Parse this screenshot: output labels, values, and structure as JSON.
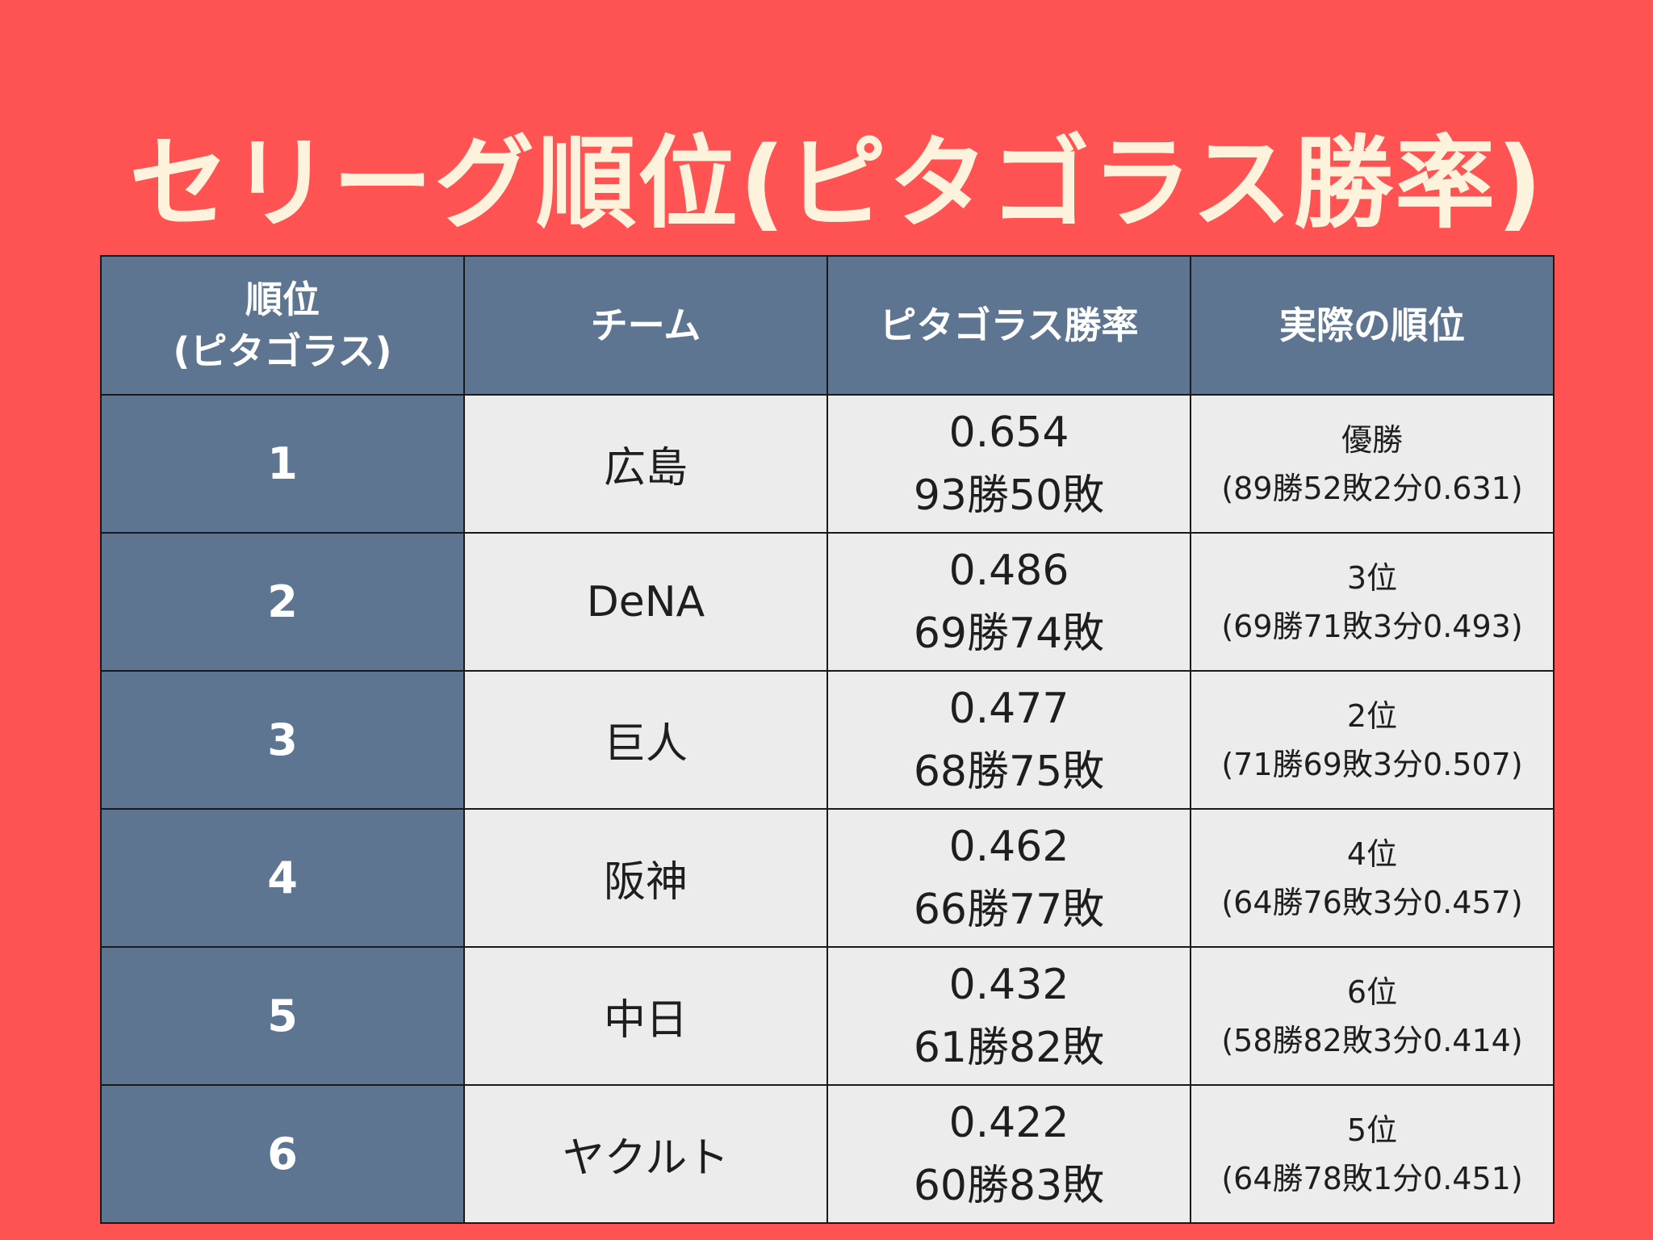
{
  "title": "セリーグ順位(ピタゴラス勝率)",
  "table": {
    "headers": {
      "rank_line1": "順位",
      "rank_line2": "(ピタゴラス)",
      "team": "チーム",
      "pythagorean": "ピタゴラス勝率",
      "actual": "実際の順位"
    },
    "rows": [
      {
        "rank": "1",
        "team": "広島",
        "pyth_rate": "0.654",
        "pyth_record": "93勝50敗",
        "actual_rank": "優勝",
        "actual_record": "(89勝52敗2分0.631)"
      },
      {
        "rank": "2",
        "team": "DeNA",
        "pyth_rate": "0.486",
        "pyth_record": "69勝74敗",
        "actual_rank": "3位",
        "actual_record": "(69勝71敗3分0.493)"
      },
      {
        "rank": "3",
        "team": "巨人",
        "pyth_rate": "0.477",
        "pyth_record": "68勝75敗",
        "actual_rank": "2位",
        "actual_record": "(71勝69敗3分0.507)"
      },
      {
        "rank": "4",
        "team": "阪神",
        "pyth_rate": "0.462",
        "pyth_record": "66勝77敗",
        "actual_rank": "4位",
        "actual_record": "(64勝76敗3分0.457)"
      },
      {
        "rank": "5",
        "team": "中日",
        "pyth_rate": "0.432",
        "pyth_record": "61勝82敗",
        "actual_rank": "6位",
        "actual_record": "(58勝82敗3分0.414)"
      },
      {
        "rank": "6",
        "team": "ヤクルト",
        "pyth_rate": "0.422",
        "pyth_record": "60勝83敗",
        "actual_rank": "5位",
        "actual_record": "(64勝78敗1分0.451)"
      }
    ]
  }
}
